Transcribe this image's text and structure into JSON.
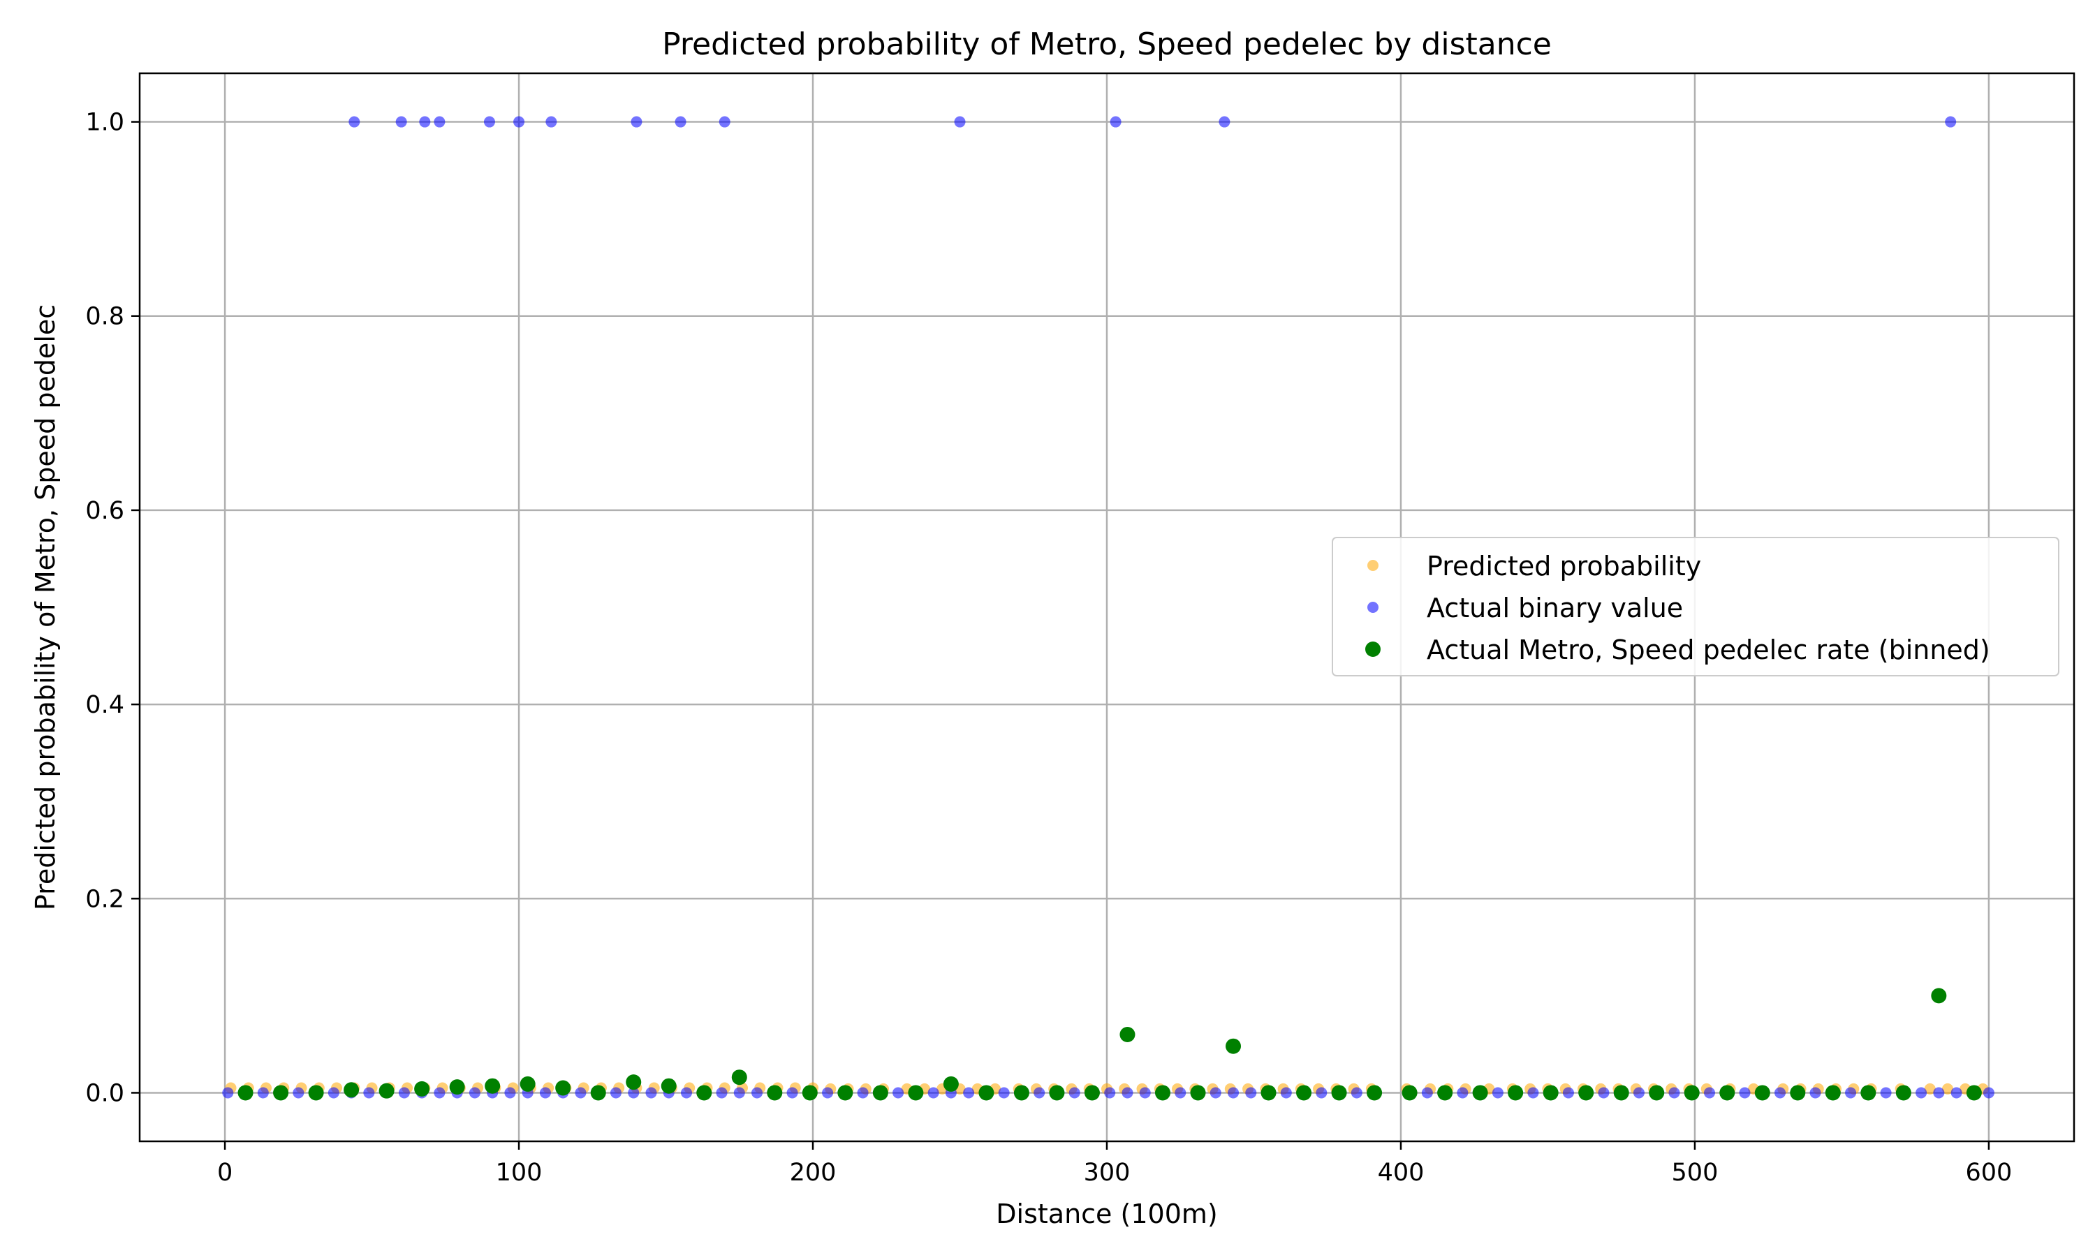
{
  "chart_data": {
    "type": "scatter",
    "title": "Predicted probability of Metro, Speed pedelec by distance",
    "xlabel": "Distance (100m)",
    "ylabel": "Predicted probability of Metro, Speed pedelec",
    "xlim": [
      -29,
      629
    ],
    "ylim": [
      -0.05,
      1.05
    ],
    "xticks": [
      0,
      100,
      200,
      300,
      400,
      500,
      600
    ],
    "xtick_labels": [
      "0",
      "100",
      "200",
      "300",
      "400",
      "500",
      "600"
    ],
    "yticks": [
      0.0,
      0.2,
      0.4,
      0.6,
      0.8,
      1.0
    ],
    "ytick_labels": [
      "0.0",
      "0.2",
      "0.4",
      "0.6",
      "0.8",
      "1.0"
    ],
    "grid": true,
    "legend_position": "center-right",
    "colors": {
      "predicted": "#FFA500",
      "actual": "#0000FF",
      "binned": "#008000",
      "grid": "#B0B0B0"
    },
    "series": [
      {
        "name": "Predicted probability",
        "marker": "small-circle",
        "points": [
          [
            2,
            0.005
          ],
          [
            8,
            0.005
          ],
          [
            14,
            0.005
          ],
          [
            20,
            0.005
          ],
          [
            26,
            0.005
          ],
          [
            32,
            0.005
          ],
          [
            38,
            0.005
          ],
          [
            44,
            0.005
          ],
          [
            50,
            0.005
          ],
          [
            56,
            0.005
          ],
          [
            62,
            0.005
          ],
          [
            68,
            0.005
          ],
          [
            74,
            0.005
          ],
          [
            80,
            0.005
          ],
          [
            86,
            0.005
          ],
          [
            92,
            0.005
          ],
          [
            98,
            0.005
          ],
          [
            104,
            0.005
          ],
          [
            110,
            0.005
          ],
          [
            116,
            0.005
          ],
          [
            122,
            0.005
          ],
          [
            128,
            0.005
          ],
          [
            134,
            0.005
          ],
          [
            140,
            0.005
          ],
          [
            146,
            0.005
          ],
          [
            152,
            0.005
          ],
          [
            158,
            0.005
          ],
          [
            164,
            0.005
          ],
          [
            170,
            0.005
          ],
          [
            176,
            0.005
          ],
          [
            182,
            0.005
          ],
          [
            188,
            0.005
          ],
          [
            194,
            0.005
          ],
          [
            200,
            0.005
          ],
          [
            206,
            0.004
          ],
          [
            212,
            0.004
          ],
          [
            218,
            0.004
          ],
          [
            224,
            0.004
          ],
          [
            232,
            0.004
          ],
          [
            238,
            0.004
          ],
          [
            244,
            0.004
          ],
          [
            250,
            0.004
          ],
          [
            256,
            0.004
          ],
          [
            262,
            0.004
          ],
          [
            270,
            0.004
          ],
          [
            276,
            0.004
          ],
          [
            282,
            0.004
          ],
          [
            288,
            0.004
          ],
          [
            294,
            0.004
          ],
          [
            300,
            0.004
          ],
          [
            306,
            0.004
          ],
          [
            312,
            0.004
          ],
          [
            318,
            0.004
          ],
          [
            324,
            0.004
          ],
          [
            330,
            0.004
          ],
          [
            336,
            0.004
          ],
          [
            342,
            0.004
          ],
          [
            348,
            0.004
          ],
          [
            354,
            0.004
          ],
          [
            360,
            0.004
          ],
          [
            366,
            0.004
          ],
          [
            372,
            0.004
          ],
          [
            378,
            0.004
          ],
          [
            384,
            0.004
          ],
          [
            390,
            0.004
          ],
          [
            402,
            0.004
          ],
          [
            410,
            0.004
          ],
          [
            416,
            0.004
          ],
          [
            422,
            0.004
          ],
          [
            430,
            0.004
          ],
          [
            438,
            0.004
          ],
          [
            444,
            0.004
          ],
          [
            450,
            0.004
          ],
          [
            456,
            0.004
          ],
          [
            462,
            0.004
          ],
          [
            468,
            0.004
          ],
          [
            474,
            0.004
          ],
          [
            480,
            0.004
          ],
          [
            486,
            0.004
          ],
          [
            492,
            0.004
          ],
          [
            498,
            0.004
          ],
          [
            504,
            0.004
          ],
          [
            512,
            0.004
          ],
          [
            520,
            0.004
          ],
          [
            530,
            0.004
          ],
          [
            536,
            0.004
          ],
          [
            542,
            0.004
          ],
          [
            548,
            0.004
          ],
          [
            554,
            0.004
          ],
          [
            560,
            0.004
          ],
          [
            570,
            0.004
          ],
          [
            580,
            0.004
          ],
          [
            586,
            0.004
          ],
          [
            592,
            0.004
          ],
          [
            598,
            0.004
          ]
        ]
      },
      {
        "name": "Actual binary value",
        "marker": "small-circle",
        "points": [
          [
            44,
            1
          ],
          [
            60,
            1
          ],
          [
            68,
            1
          ],
          [
            73,
            1
          ],
          [
            90,
            1
          ],
          [
            100,
            1
          ],
          [
            111,
            1
          ],
          [
            140,
            1
          ],
          [
            155,
            1
          ],
          [
            170,
            1
          ],
          [
            250,
            1
          ],
          [
            303,
            1
          ],
          [
            340,
            1
          ],
          [
            587,
            1
          ],
          [
            1,
            0
          ],
          [
            7,
            0
          ],
          [
            13,
            0
          ],
          [
            19,
            0
          ],
          [
            25,
            0
          ],
          [
            31,
            0
          ],
          [
            37,
            0
          ],
          [
            43,
            0
          ],
          [
            49,
            0
          ],
          [
            55,
            0
          ],
          [
            61,
            0
          ],
          [
            67,
            0
          ],
          [
            73,
            0
          ],
          [
            79,
            0
          ],
          [
            85,
            0
          ],
          [
            91,
            0
          ],
          [
            97,
            0
          ],
          [
            103,
            0
          ],
          [
            109,
            0
          ],
          [
            115,
            0
          ],
          [
            121,
            0
          ],
          [
            127,
            0
          ],
          [
            133,
            0
          ],
          [
            139,
            0
          ],
          [
            145,
            0
          ],
          [
            151,
            0
          ],
          [
            157,
            0
          ],
          [
            163,
            0
          ],
          [
            169,
            0
          ],
          [
            175,
            0
          ],
          [
            181,
            0
          ],
          [
            187,
            0
          ],
          [
            193,
            0
          ],
          [
            199,
            0
          ],
          [
            205,
            0
          ],
          [
            211,
            0
          ],
          [
            217,
            0
          ],
          [
            223,
            0
          ],
          [
            229,
            0
          ],
          [
            235,
            0
          ],
          [
            241,
            0
          ],
          [
            247,
            0
          ],
          [
            253,
            0
          ],
          [
            259,
            0
          ],
          [
            265,
            0
          ],
          [
            271,
            0
          ],
          [
            277,
            0
          ],
          [
            283,
            0
          ],
          [
            289,
            0
          ],
          [
            295,
            0
          ],
          [
            301,
            0
          ],
          [
            307,
            0
          ],
          [
            313,
            0
          ],
          [
            319,
            0
          ],
          [
            325,
            0
          ],
          [
            331,
            0
          ],
          [
            337,
            0
          ],
          [
            343,
            0
          ],
          [
            349,
            0
          ],
          [
            355,
            0
          ],
          [
            361,
            0
          ],
          [
            367,
            0
          ],
          [
            373,
            0
          ],
          [
            379,
            0
          ],
          [
            385,
            0
          ],
          [
            391,
            0
          ],
          [
            403,
            0
          ],
          [
            409,
            0
          ],
          [
            415,
            0
          ],
          [
            421,
            0
          ],
          [
            427,
            0
          ],
          [
            433,
            0
          ],
          [
            439,
            0
          ],
          [
            445,
            0
          ],
          [
            451,
            0
          ],
          [
            457,
            0
          ],
          [
            463,
            0
          ],
          [
            469,
            0
          ],
          [
            475,
            0
          ],
          [
            481,
            0
          ],
          [
            487,
            0
          ],
          [
            493,
            0
          ],
          [
            499,
            0
          ],
          [
            505,
            0
          ],
          [
            511,
            0
          ],
          [
            517,
            0
          ],
          [
            523,
            0
          ],
          [
            529,
            0
          ],
          [
            535,
            0
          ],
          [
            541,
            0
          ],
          [
            547,
            0
          ],
          [
            553,
            0
          ],
          [
            559,
            0
          ],
          [
            565,
            0
          ],
          [
            571,
            0
          ],
          [
            577,
            0
          ],
          [
            583,
            0
          ],
          [
            589,
            0
          ],
          [
            595,
            0
          ],
          [
            600,
            0
          ]
        ]
      },
      {
        "name": "Actual Metro, Speed pedelec rate (binned)",
        "marker": "large-circle",
        "points": [
          [
            7,
            0.0
          ],
          [
            19,
            0.0
          ],
          [
            31,
            0.0
          ],
          [
            43,
            0.003
          ],
          [
            55,
            0.002
          ],
          [
            67,
            0.004
          ],
          [
            79,
            0.006
          ],
          [
            91,
            0.007
          ],
          [
            103,
            0.009
          ],
          [
            115,
            0.005
          ],
          [
            127,
            0.0
          ],
          [
            139,
            0.011
          ],
          [
            151,
            0.007
          ],
          [
            163,
            0.0
          ],
          [
            175,
            0.016
          ],
          [
            187,
            0.0
          ],
          [
            199,
            0.0
          ],
          [
            211,
            0.0
          ],
          [
            223,
            0.0
          ],
          [
            235,
            0.0
          ],
          [
            247,
            0.009
          ],
          [
            259,
            0.0
          ],
          [
            271,
            0.0
          ],
          [
            283,
            0.0
          ],
          [
            295,
            0.0
          ],
          [
            307,
            0.06
          ],
          [
            319,
            0.0
          ],
          [
            331,
            0.0
          ],
          [
            343,
            0.048
          ],
          [
            355,
            0.0
          ],
          [
            367,
            0.0
          ],
          [
            379,
            0.0
          ],
          [
            391,
            0.0
          ],
          [
            403,
            0.0
          ],
          [
            415,
            0.0
          ],
          [
            427,
            0.0
          ],
          [
            439,
            0.0
          ],
          [
            451,
            0.0
          ],
          [
            463,
            0.0
          ],
          [
            475,
            0.0
          ],
          [
            487,
            0.0
          ],
          [
            499,
            0.0
          ],
          [
            511,
            0.0
          ],
          [
            523,
            0.0
          ],
          [
            535,
            0.0
          ],
          [
            547,
            0.0
          ],
          [
            559,
            0.0
          ],
          [
            571,
            0.0
          ],
          [
            583,
            0.1
          ],
          [
            595,
            0.0
          ]
        ]
      }
    ]
  }
}
